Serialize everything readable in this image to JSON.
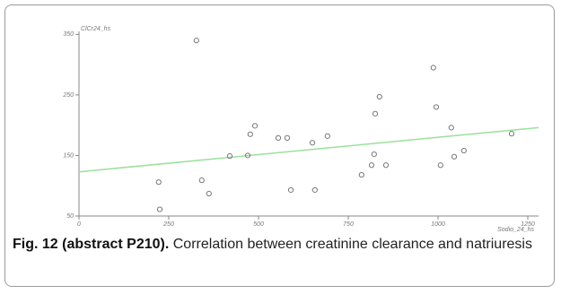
{
  "chart_data": {
    "type": "scatter",
    "x_label": "Sodio_24_hs",
    "y_label": "ClCr24_hs",
    "x": [
      327,
      222,
      225,
      342,
      362,
      420,
      470,
      477,
      490,
      555,
      580,
      590,
      650,
      657,
      692,
      787,
      825,
      837,
      822,
      815,
      855,
      987,
      995,
      1007,
      1037,
      1045,
      1072,
      1205
    ],
    "values": [
      340,
      106,
      61,
      109,
      87,
      149,
      150,
      185,
      199,
      179,
      179,
      93,
      171,
      93,
      182,
      118,
      219,
      247,
      152,
      134,
      134,
      295,
      230,
      134,
      196,
      148,
      158,
      186
    ],
    "color": "#777777",
    "trendline": {
      "x": [
        0,
        1280
      ],
      "y": [
        123,
        196
      ],
      "color": "#9be09b"
    },
    "xlim": [
      0,
      1280
    ],
    "ylim": [
      50,
      355
    ],
    "xticks": [
      0,
      250,
      500,
      750,
      1000,
      1250
    ],
    "yticks": [
      50,
      150,
      250,
      350
    ]
  },
  "caption": {
    "label": "Fig. 12 (abstract P210).",
    "text": "Correlation between creatinine clearance and natriuresis"
  }
}
